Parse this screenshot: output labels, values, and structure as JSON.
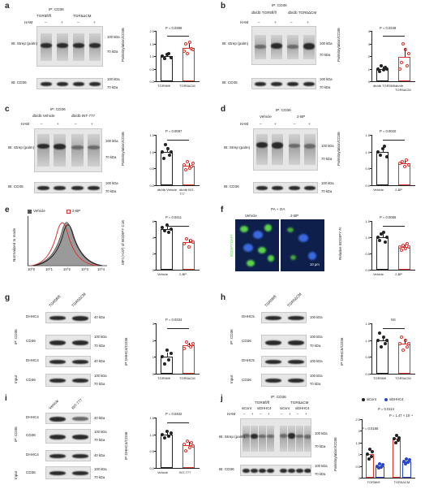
{
  "panels": {
    "a": {
      "label": "a",
      "ip": "IP: CD36",
      "groups": [
        "TGR5fl/fl",
        "TGR5ΔCM"
      ],
      "ham": "HAM",
      "ham_signs": [
        "–",
        "+",
        "–",
        "+"
      ],
      "blot_top": "IB: Strep (palm)",
      "blot_bottom": "IB: CD36",
      "mw_top": [
        "100 kDa",
        "70 kDa"
      ],
      "mw_bottom": [
        "100 kDa",
        "70 kDa"
      ],
      "pvalue": "P = 0.0399",
      "ylabel": "Palmitoylation/CD36"
    },
    "b": {
      "label": "b",
      "ip": "IP: CD36",
      "groups": [
        "db/db TGR5fl/fl",
        "db/db TGR5ΔCM"
      ],
      "ham": "HAM",
      "ham_signs": [
        "–",
        "+",
        "–",
        "+"
      ],
      "blot_top": "IB: Strep (palm)",
      "blot_bottom": "IB: CD36",
      "mw_top": [
        "100 kDa",
        "70 kDa"
      ],
      "mw_bottom": [
        "100 kDa",
        "70 kDa"
      ],
      "pvalue": "P = 0.0348",
      "ylabel": "Palmitoylation/CD36"
    },
    "c": {
      "label": "c",
      "ip": "IP: CD36",
      "groups": [
        "db/db Vehicle",
        "db/db INT-777"
      ],
      "ham": "HAM",
      "ham_signs": [
        "–",
        "+",
        "–",
        "+"
      ],
      "blot_top": "IB: Strep (palm)",
      "blot_bottom": "IB: CD36",
      "mw_top": [
        "100 kDa",
        "70 kDa"
      ],
      "mw_bottom": [
        "100 kDa",
        "70 kDa"
      ],
      "pvalue": "P = 0.0087",
      "ylabel": "Palmitoylation/CD36"
    },
    "d": {
      "label": "d",
      "ip": "IP: CD36",
      "groups": [
        "Vehicle",
        "2-BP"
      ],
      "ham": "HAM",
      "ham_signs": [
        "–",
        "+",
        "–",
        "+"
      ],
      "blot_top": "IB: Strep (palm)",
      "blot_bottom": "IB: CD36",
      "mw_top": [
        "100 kDa",
        "70 kDa"
      ],
      "mw_bottom": [
        "100 kDa",
        "70 kDa"
      ],
      "pvalue": "P = 0.0020",
      "ylabel": "Palmitoylation/CD36"
    },
    "e": {
      "label": "e",
      "legend": [
        "Vehicle",
        "2-BP"
      ],
      "ylabel": "Normalized to mode",
      "xticks": [
        "10^0",
        "10^1",
        "10^2",
        "10^3",
        "10^4"
      ],
      "pvalue": "P = 0.0411",
      "bar_ylabel": "MFI (×10³) of BODIPY C16"
    },
    "f": {
      "label": "f",
      "title": "PA + OA",
      "groups": [
        "Vehicle",
        "2-BP"
      ],
      "side_label": "BODIPY/DAPI",
      "scale": "10 μm",
      "pvalue": "P = 0.0066",
      "ylabel": "Relative BODIPY FI"
    },
    "g": {
      "label": "g",
      "lanes": [
        "TGR5fl/fl",
        "TGR5ΔCM"
      ],
      "rows": [
        "DHHC4",
        "CD36",
        "DHHC4",
        "CD36"
      ],
      "side_top": "IP: CD36",
      "side_bottom": "Input",
      "mw": [
        "40 kDa",
        "100 kDa",
        "70 kDa",
        "40 kDa",
        "100 kDa",
        "70 kDa"
      ],
      "pvalue": "P = 0.0334",
      "ylabel": "IP DHHC4/CD36"
    },
    "h": {
      "label": "h",
      "lanes": [
        "TGR5fl/fl",
        "TGR5ΔCM"
      ],
      "rows": [
        "DHHC5",
        "CD36",
        "DHHC5",
        "CD36"
      ],
      "side_top": "IP: CD36",
      "side_bottom": "Input",
      "mw": [
        "100 kDa",
        "100 kDa",
        "70 kDa",
        "100 kDa",
        "100 kDa",
        "70 kDa"
      ],
      "pvalue": "NS",
      "ylabel": "IP DHHC5/CD36"
    },
    "i": {
      "label": "i",
      "lanes": [
        "Vehicle",
        "INT-777"
      ],
      "rows": [
        "DHHC4",
        "CD36",
        "DHHC4",
        "CD36"
      ],
      "side_top": "IP: CD36",
      "side_bottom": "Input",
      "mw": [
        "40 kDa",
        "100 kDa",
        "70 kDa",
        "40 kDa",
        "100 kDa",
        "70 kDa"
      ],
      "pvalue": "P = 0.0402",
      "ylabel": "IP DHHC4/CD36"
    },
    "j": {
      "label": "j",
      "ip": "IP: CD36",
      "groups": [
        "TGR5fl/fl",
        "TGR5ΔCM"
      ],
      "subgroups": [
        "siCont",
        "siDHHC4",
        "siCont",
        "siDHHC4"
      ],
      "ham": "HAM",
      "ham_signs": [
        "–",
        "+",
        "–",
        "+",
        "–",
        "+",
        "–",
        "+"
      ],
      "blot_top": "IB: Strep (palm)",
      "blot_bottom": "IB: CD36",
      "mw_top": [
        "100 kDa",
        "70 kDa"
      ],
      "mw_bottom": [
        "100 kDa",
        "70 kDa"
      ],
      "legend": [
        "siCont",
        "siDHHC4"
      ],
      "pvalues": [
        "P = 0.0114",
        "P = 0.0186",
        "P = 1.47 × 10⁻⁴"
      ],
      "ylabel": "Palmitoylation/CD36"
    }
  },
  "colors": {
    "black": "#222222",
    "red": "#d9342c",
    "blue": "#2a46c8",
    "micro_bg": "#0d1f4a",
    "micro_green": "#5bd34a"
  },
  "chart_data": [
    {
      "panel": "a",
      "type": "bar",
      "categories": [
        "TGR5fl/fl",
        "TGR5ΔCM"
      ],
      "values": [
        1.0,
        1.32
      ],
      "ylim": [
        0,
        2.0
      ],
      "yticks": [
        0,
        0.5,
        1.0,
        1.5,
        2.0
      ],
      "points": [
        [
          1.0,
          0.9,
          1.05,
          1.1,
          0.95
        ],
        [
          1.2,
          1.5,
          1.1,
          1.55,
          1.3,
          1.25
        ]
      ]
    },
    {
      "panel": "b",
      "type": "bar",
      "categories": [
        "db/db TGR5fl/fl",
        "db/db TGR5ΔCM"
      ],
      "values": [
        1.0,
        1.95
      ],
      "ylim": [
        0,
        4.0
      ],
      "yticks": [
        0,
        1.0,
        2.0,
        3.0,
        4.0
      ],
      "points": [
        [
          1.0,
          0.8,
          1.2,
          0.9,
          1.1,
          1.0
        ],
        [
          1.0,
          1.5,
          3.0,
          2.5,
          1.2,
          2.2
        ]
      ]
    },
    {
      "panel": "c",
      "type": "bar",
      "categories": [
        "db/db Vehicle",
        "db/db INT-777"
      ],
      "values": [
        1.0,
        0.58
      ],
      "ylim": [
        0,
        1.5
      ],
      "yticks": [
        0,
        0.5,
        1.0,
        1.5
      ],
      "points": [
        [
          1.0,
          0.8,
          1.2,
          1.1,
          0.9,
          1.0
        ],
        [
          0.6,
          0.45,
          0.7,
          0.5,
          0.55,
          0.65
        ]
      ]
    },
    {
      "panel": "d",
      "type": "bar",
      "categories": [
        "Vehicle",
        "2-BP"
      ],
      "values": [
        1.0,
        0.65
      ],
      "ylim": [
        0,
        1.5
      ],
      "yticks": [
        0,
        0.5,
        1.0,
        1.5
      ],
      "points": [
        [
          1.0,
          0.9,
          1.1,
          1.15,
          0.85
        ],
        [
          0.65,
          0.7,
          0.55,
          0.75,
          0.6
        ]
      ]
    },
    {
      "panel": "e",
      "type": "bar",
      "categories": [
        "Vehicle",
        "2-BP"
      ],
      "values": [
        5.0,
        3.4
      ],
      "ylim": [
        0,
        6
      ],
      "yticks": [
        0,
        2,
        4,
        6
      ],
      "points": [
        [
          5.2,
          4.8,
          5.5,
          4.6,
          5.0
        ],
        [
          3.2,
          3.8,
          2.8,
          3.6,
          3.4
        ]
      ]
    },
    {
      "panel": "f",
      "type": "bar",
      "categories": [
        "Vehicle",
        "2-BP"
      ],
      "values": [
        1.0,
        0.7
      ],
      "ylim": [
        0,
        1.5
      ],
      "yticks": [
        0,
        0.5,
        1.0,
        1.5
      ],
      "points": [
        [
          1.0,
          0.9,
          1.1,
          1.15,
          0.85,
          1.0
        ],
        [
          0.7,
          0.6,
          0.75,
          0.65,
          0.8,
          0.7
        ]
      ]
    },
    {
      "panel": "g",
      "type": "bar",
      "categories": [
        "TGR5fl/fl",
        "TGR5ΔCM"
      ],
      "values": [
        1.0,
        1.7
      ],
      "ylim": [
        0,
        3
      ],
      "yticks": [
        0,
        1,
        2,
        3
      ],
      "points": [
        [
          1.0,
          0.6,
          1.4,
          0.8,
          1.2
        ],
        [
          1.5,
          1.9,
          1.7,
          1.6,
          1.8
        ]
      ]
    },
    {
      "panel": "h",
      "type": "bar",
      "categories": [
        "TGR5fl/fl",
        "TGR5ΔCM"
      ],
      "values": [
        1.0,
        0.9
      ],
      "ylim": [
        0,
        1.5
      ],
      "yticks": [
        0,
        0.5,
        1.0,
        1.5
      ],
      "points": [
        [
          1.0,
          1.2,
          0.8,
          1.1,
          0.9,
          1.0
        ],
        [
          0.9,
          1.1,
          0.7,
          1.0,
          0.8,
          0.9
        ]
      ]
    },
    {
      "panel": "i",
      "type": "bar",
      "categories": [
        "Vehicle",
        "INT-777"
      ],
      "values": [
        1.0,
        0.68
      ],
      "ylim": [
        0,
        1.5
      ],
      "yticks": [
        0,
        0.5,
        1.0,
        1.5
      ],
      "points": [
        [
          1.0,
          0.9,
          1.1,
          0.95,
          1.05
        ],
        [
          0.7,
          0.5,
          0.8,
          0.6,
          0.75,
          0.65
        ]
      ]
    },
    {
      "panel": "j",
      "type": "bar",
      "categories": [
        "TGR5fl/fl",
        "TGR5ΔCM"
      ],
      "series": [
        {
          "name": "siCont",
          "values": [
            1.0,
            1.65
          ]
        },
        {
          "name": "siDHHC4",
          "values": [
            0.5,
            0.7
          ]
        }
      ],
      "ylim": [
        0,
        2.5
      ],
      "yticks": [
        0,
        0.5,
        1.0,
        1.5,
        2.0,
        2.5
      ],
      "points": [
        [
          [
            1.0,
            0.8,
            1.2,
            0.9,
            1.1
          ],
          [
            0.5,
            0.4,
            0.6,
            0.45,
            0.55
          ]
        ],
        [
          [
            1.65,
            1.5,
            1.8,
            1.6,
            1.7
          ],
          [
            0.7,
            0.6,
            0.8,
            0.65,
            0.75
          ]
        ]
      ]
    }
  ]
}
